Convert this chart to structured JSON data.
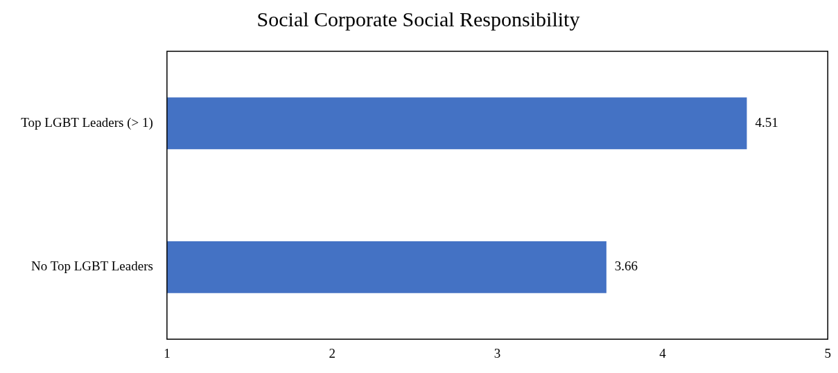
{
  "chart_data": {
    "type": "bar",
    "orientation": "horizontal",
    "title": "Social Corporate Social Responsibility",
    "categories": [
      "Top LGBT Leaders (> 1)",
      "No Top LGBT Leaders"
    ],
    "values": [
      4.51,
      3.66
    ],
    "color": "#4472c4",
    "xlim": [
      1,
      5
    ],
    "xticks": [
      1,
      2,
      3,
      4,
      5
    ],
    "grid": false,
    "legend": false,
    "data_labels": true
  }
}
